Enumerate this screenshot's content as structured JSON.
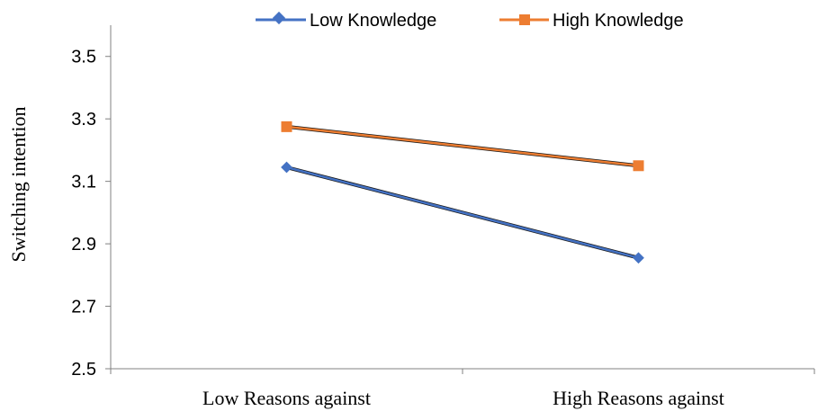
{
  "chart_data": {
    "type": "line",
    "title": "",
    "xlabel": "",
    "ylabel": "Switching intention",
    "categories": [
      "Low Reasons against",
      "High Reasons against"
    ],
    "yticks": [
      "2.5",
      "2.7",
      "2.9",
      "3.1",
      "3.3",
      "3.5"
    ],
    "ylim": [
      2.5,
      3.6
    ],
    "grid": false,
    "legend_position": "top",
    "series": [
      {
        "name": "Low Knowledge",
        "values": [
          3.145,
          2.855
        ],
        "color": "#4472C4",
        "marker": "diamond"
      },
      {
        "name": "High Knowledge",
        "values": [
          3.275,
          3.15
        ],
        "color": "#ED7D31",
        "marker": "square"
      }
    ]
  }
}
